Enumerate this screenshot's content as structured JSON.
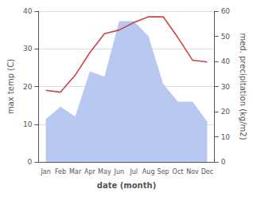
{
  "chart_data": {
    "type": "line",
    "categories": [
      "Jan",
      "Feb",
      "Mar",
      "Apr",
      "May",
      "Jun",
      "Jul",
      "Aug",
      "Sep",
      "Oct",
      "Nov",
      "Dec"
    ],
    "series": [
      {
        "type": "area",
        "color": "#b8c8f0",
        "axis": "y2",
        "values": [
          17,
          22,
          18,
          36,
          34,
          56,
          56,
          50,
          31,
          24,
          24,
          16
        ]
      },
      {
        "type": "line",
        "color": "#cc4444",
        "values": [
          19,
          18.5,
          23,
          29,
          34,
          35,
          37,
          38.5,
          38.5,
          33,
          27,
          26.5
        ]
      }
    ],
    "xlabel": "date (month)",
    "ylabel": "max temp (C)",
    "y2label": "med. precipitation (kg/m2)",
    "ylim": [
      0,
      40
    ],
    "yticks": [
      0,
      10,
      20,
      30,
      40
    ],
    "y2lim": [
      0,
      60
    ],
    "y2ticks": [
      0,
      10,
      20,
      30,
      40,
      50,
      60
    ],
    "grid": true
  }
}
